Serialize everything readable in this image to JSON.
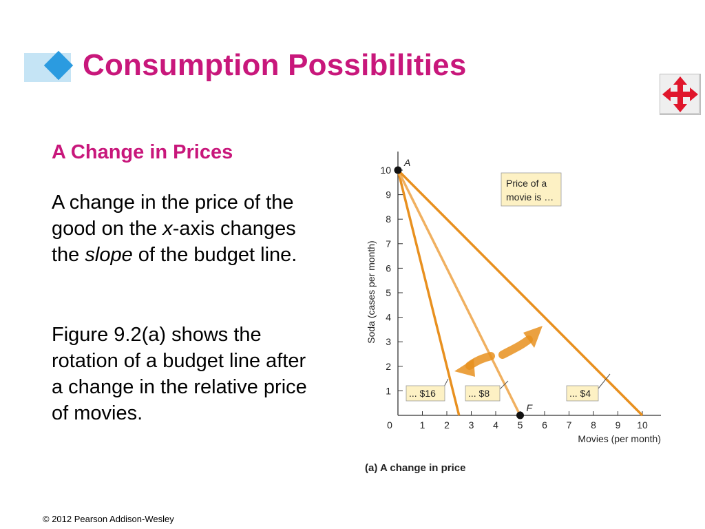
{
  "slide": {
    "title": "Consumption Possibilities",
    "subtitle": "A Change in Prices",
    "para1": {
      "a": "A change in the price of the good on the ",
      "x": "x",
      "b": "-axis changes the ",
      "slope": "slope",
      "c": " of the budget line."
    },
    "para2": "Figure 9.2(a) shows the rotation of a budget line after a change in the relative price of movies.",
    "copyright": "© 2012 Pearson Addison-Wesley",
    "nav_icon": "four-way-arrow-icon",
    "colors": {
      "title": "#c8177b",
      "budget_line": "#e8901f",
      "budget_line_light": "#f0b060",
      "label_box": "#fdf1c4"
    }
  },
  "chart_data": {
    "type": "line",
    "ylabel": "Soda (cases per month)",
    "xlabel": "Movies (per month)",
    "caption": "(a) A change in price",
    "xlim": [
      0,
      10
    ],
    "ylim": [
      0,
      10
    ],
    "xticks": [
      "0",
      "1",
      "2",
      "3",
      "4",
      "5",
      "6",
      "7",
      "8",
      "9",
      "10"
    ],
    "yticks": [
      "1",
      "2",
      "3",
      "4",
      "5",
      "6",
      "7",
      "8",
      "9",
      "10"
    ],
    "series": [
      {
        "name": "... $16",
        "points": [
          [
            0,
            10
          ],
          [
            2.5,
            0
          ]
        ]
      },
      {
        "name": "... $8",
        "points": [
          [
            0,
            10
          ],
          [
            5,
            0
          ]
        ]
      },
      {
        "name": "... $4",
        "points": [
          [
            0,
            10
          ],
          [
            10,
            0
          ]
        ]
      }
    ],
    "points": [
      {
        "label": "A",
        "x": 0,
        "y": 10
      },
      {
        "label": "F",
        "x": 5,
        "y": 0
      }
    ],
    "annotation": "Price of a movie is ..."
  }
}
